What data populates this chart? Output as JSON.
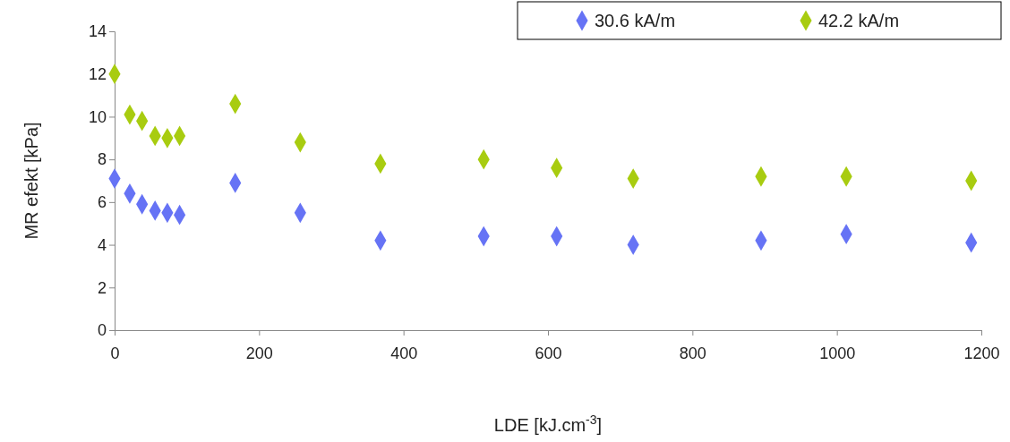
{
  "chart_data": {
    "type": "scatter",
    "xlabel": "LDE [kJ.cm$^{-3}$]",
    "ylabel": "MR efekt [kPa]",
    "xlim": [
      0,
      1200
    ],
    "xticks": [
      0,
      200,
      400,
      600,
      800,
      1000,
      1200
    ],
    "ylim": [
      0,
      14
    ],
    "yticks": [
      0,
      2,
      4,
      6,
      8,
      10,
      12,
      14
    ],
    "x": [
      0,
      21,
      38,
      56,
      73,
      90,
      167,
      257,
      368,
      511,
      612,
      718,
      895,
      1013,
      1186
    ],
    "series": [
      {
        "name": "30.6 kA/m",
        "color": "#6673f5",
        "values": [
          7.1,
          6.4,
          5.9,
          5.6,
          5.5,
          5.4,
          6.9,
          5.5,
          4.2,
          4.4,
          4.4,
          4.0,
          4.2,
          4.5,
          4.1
        ]
      },
      {
        "name": "42.2 kA/m",
        "color": "#a8cc10",
        "values": [
          12.0,
          10.1,
          9.8,
          9.1,
          9.0,
          9.1,
          10.6,
          8.8,
          7.8,
          8.0,
          7.6,
          7.1,
          7.2,
          7.2,
          7.0
        ]
      }
    ],
    "marker": "diamond",
    "grid": false,
    "legend": "top right"
  }
}
